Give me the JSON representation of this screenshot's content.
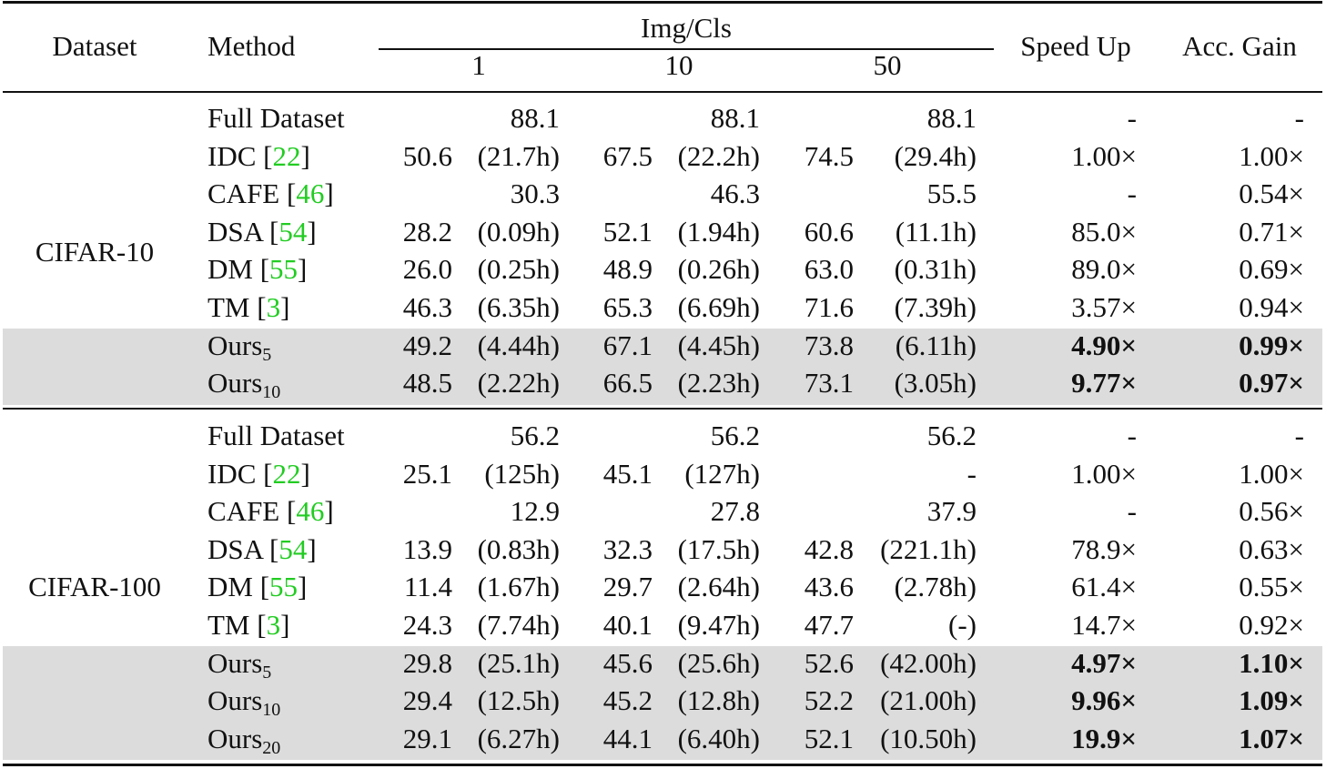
{
  "header": {
    "dataset": "Dataset",
    "method": "Method",
    "img_cls": "Img/Cls",
    "ipc1": "1",
    "ipc10": "10",
    "ipc50": "50",
    "speed_up": "Speed Up",
    "acc_gain": "Acc. Gain"
  },
  "groups": [
    {
      "dataset": "CIFAR-10",
      "rows": [
        {
          "m": "Full Dataset",
          "cite": "",
          "sub": "",
          "v1": "88.1",
          "t1": "",
          "v10": "88.1",
          "t10": "",
          "v50": "88.1",
          "t50": "",
          "speed": "-",
          "acc": "-",
          "bold": false,
          "shaded": false
        },
        {
          "m": "IDC [",
          "cite": "22",
          "sub": "",
          "v1": "50.6",
          "t1": "(21.7h)",
          "v10": "67.5",
          "t10": "(22.2h)",
          "v50": "74.5",
          "t50": "(29.4h)",
          "speed": "1.00×",
          "acc": "1.00×",
          "bold": false,
          "shaded": false
        },
        {
          "m": "CAFE [",
          "cite": "46",
          "sub": "",
          "v1": "30.3",
          "t1": "",
          "v10": "46.3",
          "t10": "",
          "v50": "55.5",
          "t50": "",
          "speed": "-",
          "acc": "0.54×",
          "bold": false,
          "shaded": false
        },
        {
          "m": "DSA [",
          "cite": "54",
          "sub": "",
          "v1": "28.2",
          "t1": "(0.09h)",
          "v10": "52.1",
          "t10": "(1.94h)",
          "v50": "60.6",
          "t50": "(11.1h)",
          "speed": "85.0×",
          "acc": "0.71×",
          "bold": false,
          "shaded": false
        },
        {
          "m": "DM [",
          "cite": "55",
          "sub": "",
          "v1": "26.0",
          "t1": "(0.25h)",
          "v10": "48.9",
          "t10": "(0.26h)",
          "v50": "63.0",
          "t50": "(0.31h)",
          "speed": "89.0×",
          "acc": "0.69×",
          "bold": false,
          "shaded": false
        },
        {
          "m": "TM [",
          "cite": "3",
          "sub": "",
          "v1": "46.3",
          "t1": "(6.35h)",
          "v10": "65.3",
          "t10": "(6.69h)",
          "v50": "71.6",
          "t50": "(7.39h)",
          "speed": "3.57×",
          "acc": "0.94×",
          "bold": false,
          "shaded": false
        },
        {
          "m": "Ours",
          "cite": "",
          "sub": "5",
          "v1": "49.2",
          "t1": "(4.44h)",
          "v10": "67.1",
          "t10": "(4.45h)",
          "v50": "73.8",
          "t50": "(6.11h)",
          "speed": "4.90×",
          "acc": "0.99×",
          "bold": true,
          "shaded": true
        },
        {
          "m": "Ours",
          "cite": "",
          "sub": "10",
          "v1": "48.5",
          "t1": "(2.22h)",
          "v10": "66.5",
          "t10": "(2.23h)",
          "v50": "73.1",
          "t50": "(3.05h)",
          "speed": "9.77×",
          "acc": "0.97×",
          "bold": true,
          "shaded": true
        }
      ]
    },
    {
      "dataset": "CIFAR-100",
      "rows": [
        {
          "m": "Full Dataset",
          "cite": "",
          "sub": "",
          "v1": "56.2",
          "t1": "",
          "v10": "56.2",
          "t10": "",
          "v50": "56.2",
          "t50": "",
          "speed": "-",
          "acc": "-",
          "bold": false,
          "shaded": false
        },
        {
          "m": "IDC [",
          "cite": "22",
          "sub": "",
          "v1": "25.1",
          "t1": "(125h)",
          "v10": "45.1",
          "t10": "(127h)",
          "v50": "-",
          "t50": "",
          "speed": "1.00×",
          "acc": "1.00×",
          "bold": false,
          "shaded": false
        },
        {
          "m": "CAFE [",
          "cite": "46",
          "sub": "",
          "v1": "12.9",
          "t1": "",
          "v10": "27.8",
          "t10": "",
          "v50": "37.9",
          "t50": "",
          "speed": "-",
          "acc": "0.56×",
          "bold": false,
          "shaded": false
        },
        {
          "m": "DSA [",
          "cite": "54",
          "sub": "",
          "v1": "13.9",
          "t1": "(0.83h)",
          "v10": "32.3",
          "t10": "(17.5h)",
          "v50": "42.8",
          "t50": "(221.1h)",
          "speed": "78.9×",
          "acc": "0.63×",
          "bold": false,
          "shaded": false
        },
        {
          "m": "DM [",
          "cite": "55",
          "sub": "",
          "v1": "11.4",
          "t1": "(1.67h)",
          "v10": "29.7",
          "t10": "(2.64h)",
          "v50": "43.6",
          "t50": "(2.78h)",
          "speed": "61.4×",
          "acc": "0.55×",
          "bold": false,
          "shaded": false
        },
        {
          "m": "TM [",
          "cite": "3",
          "sub": "",
          "v1": "24.3",
          "t1": "(7.74h)",
          "v10": "40.1",
          "t10": "(9.47h)",
          "v50": "47.7",
          "t50": "(-)",
          "speed": "14.7×",
          "acc": "0.92×",
          "bold": false,
          "shaded": false
        },
        {
          "m": "Ours",
          "cite": "",
          "sub": "5",
          "v1": "29.8",
          "t1": "(25.1h)",
          "v10": "45.6",
          "t10": "(25.6h)",
          "v50": "52.6",
          "t50": "(42.00h)",
          "speed": "4.97×",
          "acc": "1.10×",
          "bold": true,
          "shaded": true
        },
        {
          "m": "Ours",
          "cite": "",
          "sub": "10",
          "v1": "29.4",
          "t1": "(12.5h)",
          "v10": "45.2",
          "t10": "(12.8h)",
          "v50": "52.2",
          "t50": "(21.00h)",
          "speed": "9.96×",
          "acc": "1.09×",
          "bold": true,
          "shaded": true
        },
        {
          "m": "Ours",
          "cite": "",
          "sub": "20",
          "v1": "29.1",
          "t1": "(6.27h)",
          "v10": "44.1",
          "t10": "(6.40h)",
          "v50": "52.1",
          "t50": "(10.50h)",
          "speed": "19.9×",
          "acc": "1.07×",
          "bold": true,
          "shaded": true
        }
      ]
    }
  ]
}
